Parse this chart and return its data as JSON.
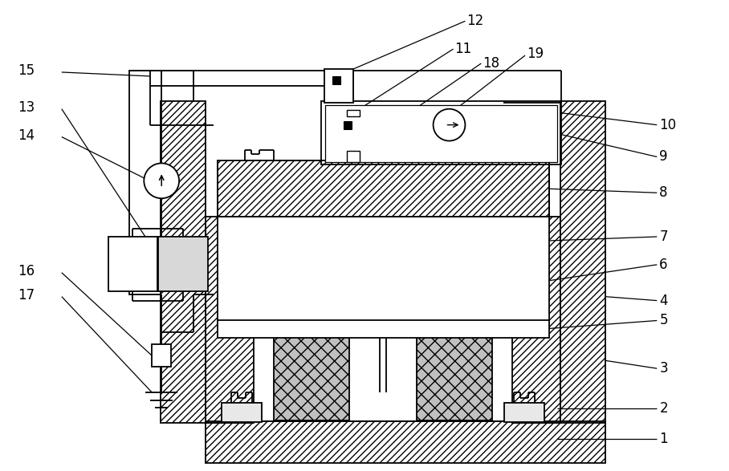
{
  "bg_color": "#ffffff",
  "lc": "#000000",
  "lw": 1.3,
  "fig_width": 9.08,
  "fig_height": 5.87,
  "dpi": 100
}
